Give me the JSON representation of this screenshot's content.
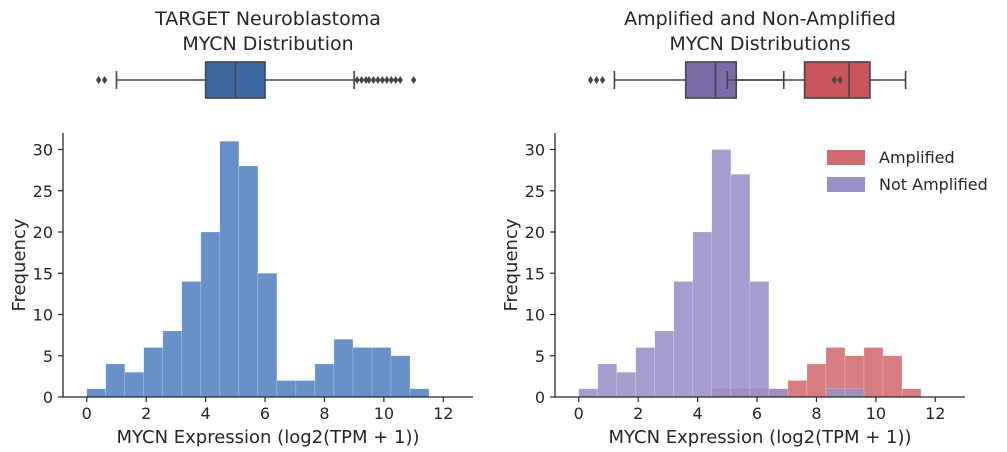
{
  "chart_data": [
    {
      "id": "left",
      "type": "histogram",
      "title_lines": [
        "TARGET Neuroblastoma",
        "MYCN Distribution"
      ],
      "xlabel": "MYCN Expression (log2(TPM + 1))",
      "ylabel": "Frequency",
      "xlim": [
        -0.8,
        13
      ],
      "ylim": [
        0,
        32
      ],
      "xticks": [
        0,
        2,
        4,
        6,
        8,
        10,
        12
      ],
      "yticks": [
        0,
        5,
        10,
        15,
        20,
        25,
        30
      ],
      "grid": false,
      "bin_start": 0,
      "bin_width": 0.64,
      "series": [
        {
          "color": "#4c7fc0",
          "values": [
            1,
            4,
            3,
            6,
            8,
            14,
            20,
            31,
            28,
            15,
            2,
            2,
            4,
            7,
            6,
            6,
            5,
            1
          ]
        }
      ],
      "boxplots": [
        {
          "color": "#3e6aa3",
          "whisker_low": 1.0,
          "q1": 4.0,
          "median": 5.0,
          "q3": 6.0,
          "whisker_high": 9.0,
          "outliers": [
            0.4,
            0.6,
            9.1,
            9.25,
            9.4,
            9.5,
            9.65,
            9.8,
            9.95,
            10.1,
            10.25,
            10.4,
            10.55,
            11.0
          ]
        }
      ]
    },
    {
      "id": "right",
      "type": "histogram",
      "title_lines": [
        "Amplified and Non-Amplified",
        "MYCN Distributions"
      ],
      "xlabel": "MYCN Expression (log2(TPM + 1))",
      "ylabel": "Frequency",
      "xlim": [
        -0.8,
        13
      ],
      "ylim": [
        0,
        32
      ],
      "xticks": [
        0,
        2,
        4,
        6,
        8,
        10,
        12
      ],
      "yticks": [
        0,
        5,
        10,
        15,
        20,
        25,
        30
      ],
      "grid": false,
      "legend_position": "top-right",
      "bin_start": 0,
      "bin_width": 0.64,
      "series": [
        {
          "name": "Amplified",
          "color": "#d16b6f",
          "values": [
            0,
            0,
            0,
            0,
            0,
            0,
            0,
            1,
            1,
            1,
            1,
            2,
            4,
            6,
            5,
            6,
            5,
            1
          ]
        },
        {
          "name": "Not Amplified",
          "color": "#9a8ec6",
          "values": [
            1,
            4,
            3,
            6,
            8,
            14,
            20,
            30,
            27,
            14,
            1,
            0,
            0,
            1,
            1,
            0,
            0,
            0
          ]
        }
      ],
      "boxplots": [
        {
          "color": "#7b6ba8",
          "whisker_low": 1.2,
          "q1": 3.6,
          "median": 4.6,
          "q3": 5.3,
          "whisker_high": 6.9,
          "outliers": [
            0.4,
            0.6,
            0.8
          ]
        },
        {
          "color": "#c9545a",
          "whisker_low": 5.0,
          "q1": 7.6,
          "median": 9.1,
          "q3": 9.8,
          "whisker_high": 11.0,
          "outliers": [
            8.6,
            8.8
          ]
        }
      ]
    }
  ]
}
